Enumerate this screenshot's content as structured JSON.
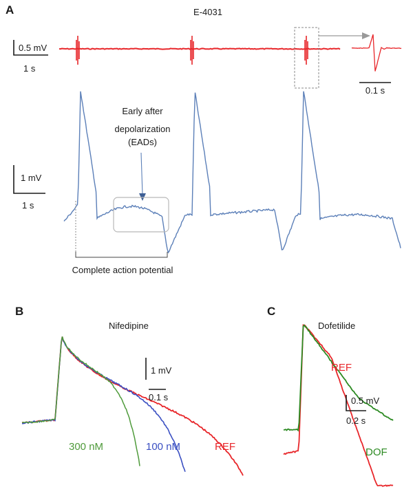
{
  "panels": [
    {
      "letter": "A",
      "title": "E-4031"
    },
    {
      "letter": "B",
      "title": "Nifedipine"
    },
    {
      "letter": "C",
      "title": "Dofetilide"
    }
  ],
  "chart_data": [
    {
      "panel": "A",
      "type": "line",
      "title": "E-4031",
      "series": [
        {
          "name": "field potential (red)",
          "color": "#e8262a",
          "description": "flat baseline with three sharp spikes",
          "spike_times_s": [
            0.9,
            6.0,
            11.4
          ],
          "baseline_mV": 0
        },
        {
          "name": "action potential (blue)",
          "color": "#5b7fb8",
          "peak_times_s": [
            0.9,
            6.0,
            11.4
          ]
        }
      ],
      "inset": {
        "label": "0.1 s",
        "description": "zoomed single field potential spike"
      },
      "scale_bars": [
        {
          "label": "0.5 mV",
          "orientation": "vertical"
        },
        {
          "label": "1 s",
          "orientation": "horizontal"
        },
        {
          "label": "1 mV",
          "orientation": "vertical"
        },
        {
          "label": "1 s",
          "orientation": "horizontal"
        }
      ],
      "annotations": [
        {
          "text_lines": [
            "Early after",
            "depolarization",
            "(EADs)"
          ]
        },
        {
          "text": "Complete action potential"
        }
      ]
    },
    {
      "panel": "B",
      "type": "line",
      "title": "Nifedipine",
      "series": [
        {
          "name": "REF",
          "color": "#e8262a",
          "apd_relative": 1.0
        },
        {
          "name": "100 nM",
          "color": "#3a4fc2",
          "apd_relative": 0.73
        },
        {
          "name": "300 nM",
          "color": "#4e9a3a",
          "apd_relative": 0.52
        }
      ],
      "scale_bars": [
        {
          "label": "1 mV",
          "orientation": "vertical"
        },
        {
          "label": "0.1 s",
          "orientation": "horizontal"
        }
      ]
    },
    {
      "panel": "C",
      "type": "line",
      "title": "Dofetilide",
      "series": [
        {
          "name": "REF",
          "color": "#e8262a"
        },
        {
          "name": "DOF",
          "color": "#2c8a22"
        }
      ],
      "scale_bars": [
        {
          "label": "0.5 mV",
          "orientation": "vertical"
        },
        {
          "label": "0.2 s",
          "orientation": "horizontal"
        }
      ]
    }
  ]
}
